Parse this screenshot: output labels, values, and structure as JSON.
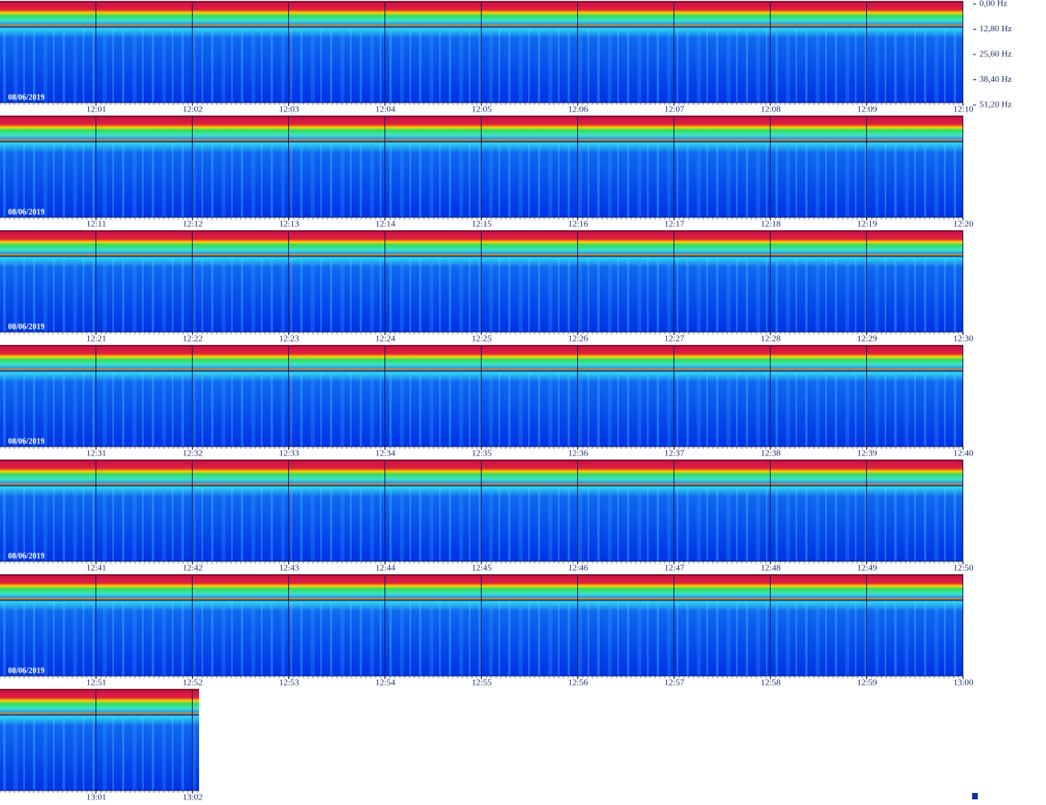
{
  "frequency_axis": [
    "0,00 Hz",
    "12,80 Hz",
    "25,60 Hz",
    "38,40 Hz",
    "51,20 Hz"
  ],
  "rows": [
    {
      "date": "08/06/2019",
      "times": [
        "12:01",
        "12:02",
        "12:03",
        "12:04",
        "12:05",
        "12:06",
        "12:07",
        "12:08",
        "12:09",
        "12:10"
      ]
    },
    {
      "date": "08/06/2019",
      "times": [
        "12:11",
        "12:12",
        "12:13",
        "12:14",
        "12:15",
        "12:16",
        "12:17",
        "12:18",
        "12:19",
        "12:20"
      ]
    },
    {
      "date": "08/06/2019",
      "times": [
        "12:21",
        "12:22",
        "12:23",
        "12:24",
        "12:25",
        "12:26",
        "12:27",
        "12:28",
        "12:29",
        "12:30"
      ]
    },
    {
      "date": "08/06/2019",
      "times": [
        "12:31",
        "12:32",
        "12:33",
        "12:34",
        "12:35",
        "12:36",
        "12:37",
        "12:38",
        "12:39",
        "12:40"
      ]
    },
    {
      "date": "08/06/2019",
      "times": [
        "12:41",
        "12:42",
        "12:43",
        "12:44",
        "12:45",
        "12:46",
        "12:47",
        "12:48",
        "12:49",
        "12:50"
      ]
    },
    {
      "date": "08/06/2019",
      "times": [
        "12:51",
        "12:52",
        "12:53",
        "12:54",
        "12:55",
        "12:56",
        "12:57",
        "12:58",
        "12:59",
        "13:00"
      ]
    },
    {
      "times": [
        "13:01",
        "13:02"
      ]
    }
  ]
}
